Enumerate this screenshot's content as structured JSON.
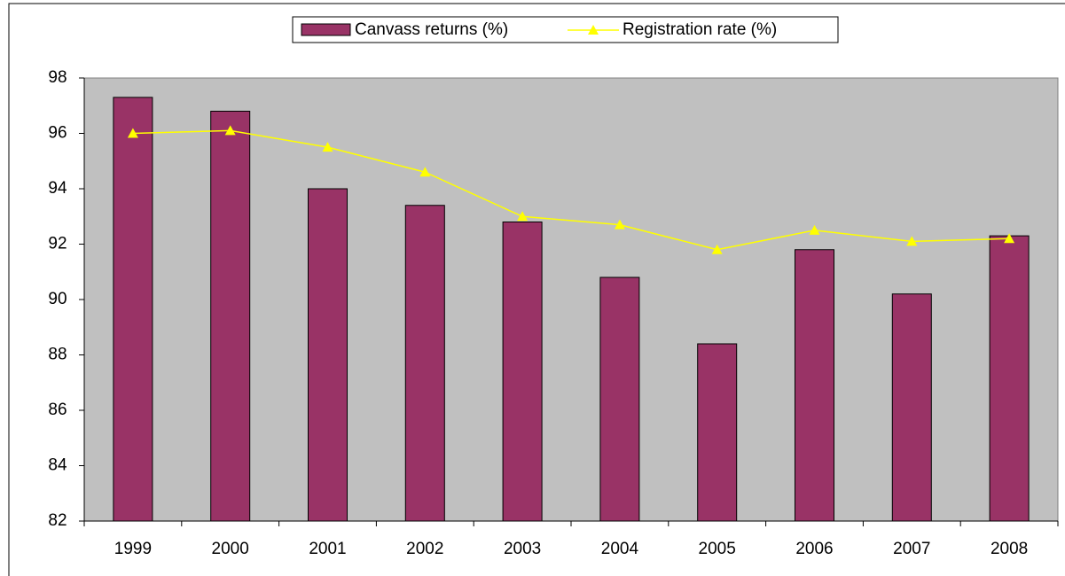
{
  "chart_data": {
    "type": "bar_line",
    "categories": [
      "1999",
      "2000",
      "2001",
      "2002",
      "2003",
      "2004",
      "2005",
      "2006",
      "2007",
      "2008"
    ],
    "series": [
      {
        "name": "Canvass returns (%)",
        "type": "bar",
        "color": "#993366",
        "values": [
          97.3,
          96.8,
          94.0,
          93.4,
          92.8,
          90.8,
          88.4,
          91.8,
          90.2,
          92.3
        ]
      },
      {
        "name": "Registration rate (%)",
        "type": "line",
        "color": "#ffff00",
        "values": [
          96.0,
          96.1,
          95.5,
          94.6,
          93.0,
          92.7,
          91.8,
          92.5,
          92.1,
          92.2
        ]
      }
    ],
    "ylim": [
      82,
      98
    ],
    "yticks": [
      82,
      84,
      86,
      88,
      90,
      92,
      94,
      96,
      98
    ],
    "plot_background": "#c0c0c0",
    "legend": "top"
  }
}
